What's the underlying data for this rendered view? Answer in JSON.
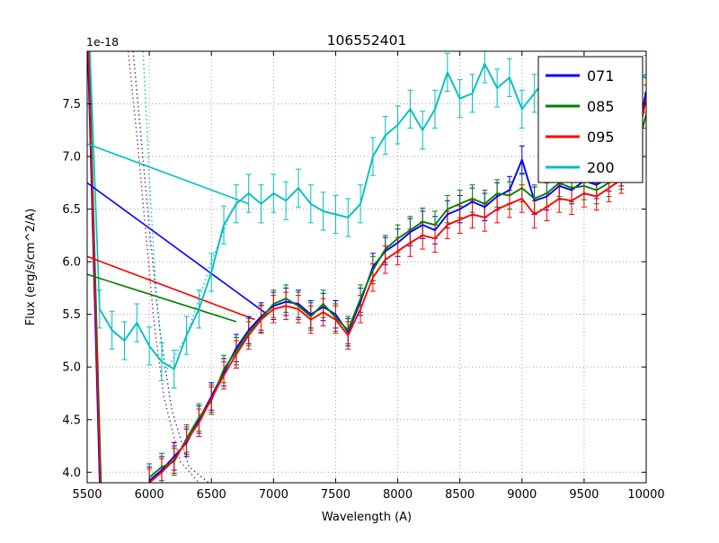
{
  "chart_data": {
    "type": "line",
    "title": "106552401",
    "xlabel": "Wavelength (A)",
    "ylabel": "Flux (erg/s/cm^2/A)",
    "y_offset_label": "1e-18",
    "xlim": [
      5500,
      10000
    ],
    "ylim": [
      3.9,
      8.0
    ],
    "xticks": [
      5500,
      6000,
      6500,
      7000,
      7500,
      8000,
      8500,
      9000,
      9500,
      10000
    ],
    "yticks": [
      4.0,
      4.5,
      5.0,
      5.5,
      6.0,
      6.5,
      7.0,
      7.5
    ],
    "grid": true,
    "legend_position": "upper right",
    "series": [
      {
        "name": "071",
        "color": "#0000ff",
        "yerr": 0.13,
        "x": [
          6000,
          6100,
          6200,
          6300,
          6400,
          6500,
          6600,
          6700,
          6800,
          6900,
          7000,
          7100,
          7200,
          7300,
          7400,
          7500,
          7600,
          7700,
          7800,
          7900,
          8000,
          8100,
          8200,
          8300,
          8400,
          8500,
          8600,
          8700,
          8800,
          8900,
          9000,
          9100,
          9200,
          9300,
          9400,
          9500,
          9600,
          9700,
          9800,
          9900,
          10000
        ],
        "y": [
          3.92,
          4.02,
          4.15,
          4.28,
          4.5,
          4.72,
          4.95,
          5.18,
          5.35,
          5.48,
          5.58,
          5.62,
          5.6,
          5.5,
          5.57,
          5.5,
          5.33,
          5.62,
          5.95,
          6.1,
          6.18,
          6.28,
          6.35,
          6.3,
          6.45,
          6.5,
          6.57,
          6.52,
          6.62,
          6.68,
          6.97,
          6.58,
          6.62,
          6.72,
          6.68,
          6.77,
          6.73,
          6.8,
          6.85,
          7.05,
          7.62
        ]
      },
      {
        "name": "085",
        "color": "#008000",
        "yerr": 0.13,
        "x": [
          6000,
          6100,
          6200,
          6300,
          6400,
          6500,
          6600,
          6700,
          6800,
          6900,
          7000,
          7100,
          7200,
          7300,
          7400,
          7500,
          7600,
          7700,
          7800,
          7900,
          8000,
          8100,
          8200,
          8300,
          8400,
          8500,
          8600,
          8700,
          8800,
          8900,
          9000,
          9100,
          9200,
          9300,
          9400,
          9500,
          9600,
          9700,
          9800,
          9900,
          10000
        ],
        "y": [
          3.95,
          4.05,
          4.1,
          4.32,
          4.52,
          4.68,
          4.98,
          5.15,
          5.33,
          5.46,
          5.6,
          5.65,
          5.58,
          5.48,
          5.6,
          5.47,
          5.35,
          5.65,
          5.92,
          6.12,
          6.22,
          6.3,
          6.38,
          6.35,
          6.5,
          6.55,
          6.6,
          6.55,
          6.65,
          6.63,
          6.7,
          6.6,
          6.65,
          6.75,
          6.7,
          6.72,
          6.68,
          6.75,
          6.82,
          6.95,
          7.4
        ]
      },
      {
        "name": "095",
        "color": "#ff0000",
        "yerr": 0.13,
        "x": [
          6000,
          6100,
          6200,
          6300,
          6400,
          6500,
          6600,
          6700,
          6800,
          6900,
          7000,
          7100,
          7200,
          7300,
          7400,
          7500,
          7600,
          7700,
          7800,
          7900,
          8000,
          8100,
          8200,
          8300,
          8400,
          8500,
          8600,
          8700,
          8800,
          8900,
          9000,
          9100,
          9200,
          9300,
          9400,
          9500,
          9600,
          9700,
          9800,
          9900,
          10000
        ],
        "y": [
          3.9,
          4.0,
          4.12,
          4.3,
          4.47,
          4.7,
          4.92,
          5.12,
          5.3,
          5.45,
          5.55,
          5.58,
          5.55,
          5.45,
          5.52,
          5.45,
          5.3,
          5.55,
          5.85,
          6.02,
          6.1,
          6.18,
          6.25,
          6.22,
          6.35,
          6.4,
          6.45,
          6.42,
          6.5,
          6.55,
          6.6,
          6.45,
          6.52,
          6.6,
          6.58,
          6.65,
          6.62,
          6.7,
          6.78,
          6.98,
          7.55
        ]
      },
      {
        "name": "200",
        "color": "#00bfbf",
        "yerr": 0.18,
        "x": [
          5600,
          5700,
          5800,
          5900,
          6000,
          6100,
          6200,
          6300,
          6400,
          6500,
          6600,
          6700,
          6800,
          6900,
          7000,
          7100,
          7200,
          7300,
          7400,
          7500,
          7600,
          7700,
          7800,
          7900,
          8000,
          8100,
          8200,
          8300,
          8400,
          8500,
          8600,
          8700,
          8800,
          8900,
          9000,
          9100,
          9200,
          9300,
          9400,
          9500,
          9600,
          9700,
          9800,
          9900,
          10000
        ],
        "y": [
          5.55,
          5.35,
          5.25,
          5.42,
          5.2,
          5.05,
          4.98,
          5.3,
          5.55,
          5.9,
          6.35,
          6.55,
          6.65,
          6.55,
          6.65,
          6.58,
          6.7,
          6.55,
          6.48,
          6.45,
          6.42,
          6.55,
          7.0,
          7.2,
          7.3,
          7.45,
          7.25,
          7.45,
          7.8,
          7.55,
          7.6,
          7.88,
          7.65,
          7.75,
          7.45,
          7.6,
          7.75,
          7.65,
          7.55,
          7.7,
          7.6,
          7.65,
          7.7,
          7.72,
          7.78
        ]
      }
    ],
    "model_lines": [
      {
        "color": "#0000ff",
        "x": [
          5500,
          6950
        ],
        "y": [
          6.75,
          5.5
        ]
      },
      {
        "color": "#008000",
        "x": [
          5500,
          6700
        ],
        "y": [
          5.88,
          5.43
        ]
      },
      {
        "color": "#ff0000",
        "x": [
          5500,
          6850
        ],
        "y": [
          6.05,
          5.45
        ]
      },
      {
        "color": "#00bfbf",
        "x": [
          5500,
          6800
        ],
        "y": [
          7.12,
          6.55
        ]
      }
    ],
    "dotted_lines": [
      {
        "color": "#aa3333",
        "x": [
          5830,
          5900,
          5970,
          6040,
          6120,
          6250,
          6400
        ],
        "y": [
          8.0,
          7.2,
          6.3,
          5.4,
          4.7,
          4.1,
          3.9
        ]
      },
      {
        "color": "#3333aa",
        "x": [
          5870,
          5940,
          6010,
          6090,
          6180,
          6320,
          6480
        ],
        "y": [
          8.0,
          7.1,
          6.2,
          5.3,
          4.6,
          4.05,
          3.9
        ]
      },
      {
        "color": "#00bfbf",
        "x": [
          5950,
          6000,
          6060,
          6130,
          6300,
          6500,
          6650
        ],
        "y": [
          8.0,
          6.8,
          5.6,
          4.95,
          5.3,
          6.0,
          6.45
        ]
      }
    ],
    "edge_lines": [
      {
        "color": "#0000ff",
        "x": [
          5505,
          5600
        ],
        "y": [
          8.0,
          3.9
        ]
      },
      {
        "color": "#008000",
        "x": [
          5515,
          5612
        ],
        "y": [
          8.0,
          3.9
        ]
      },
      {
        "color": "#ff0000",
        "x": [
          5510,
          5606
        ],
        "y": [
          8.0,
          3.9
        ]
      },
      {
        "color": "#00bfbf",
        "x": [
          5522,
          5600
        ],
        "y": [
          8.0,
          5.55
        ]
      }
    ]
  }
}
